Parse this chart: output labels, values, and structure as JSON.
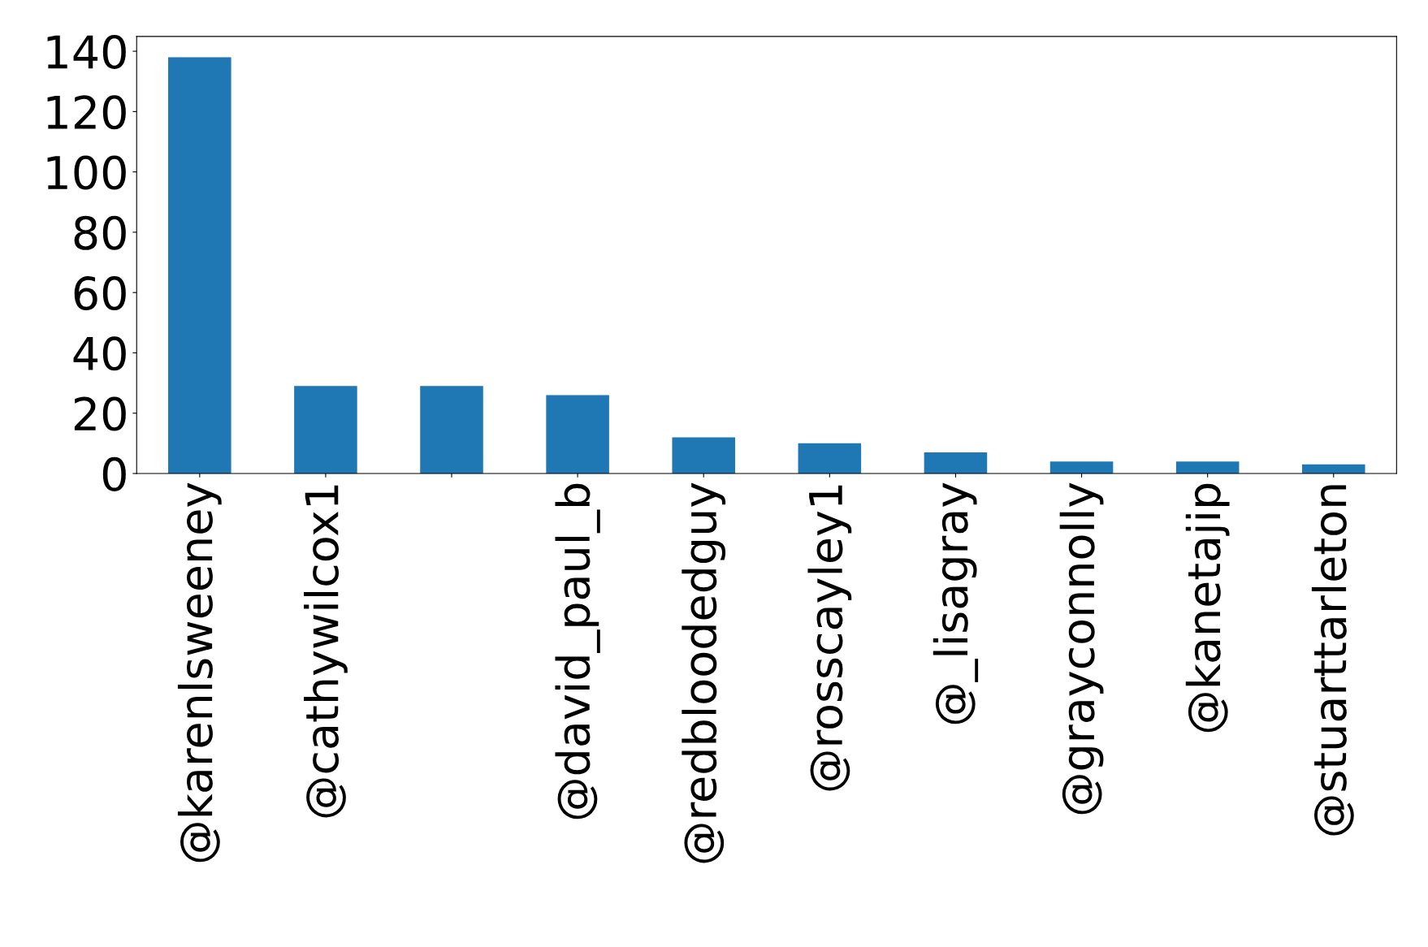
{
  "chart_data": {
    "type": "bar",
    "categories": [
      "@karenlsweeney",
      "@cathywilcox1",
      null,
      "@david_paul_b",
      "@redbloodedguy",
      "@rosscayley1",
      "@_lisagray",
      "@grayconnolly",
      "@kanetajip",
      "@stuarttarleton"
    ],
    "values": [
      138,
      29,
      29,
      26,
      12,
      10,
      7,
      4,
      4,
      3
    ],
    "color": "#1f77b4",
    "ylim": [
      0,
      144.9
    ],
    "yticks": [
      0,
      20,
      40,
      60,
      80,
      100,
      120,
      140
    ],
    "grid": false
  }
}
